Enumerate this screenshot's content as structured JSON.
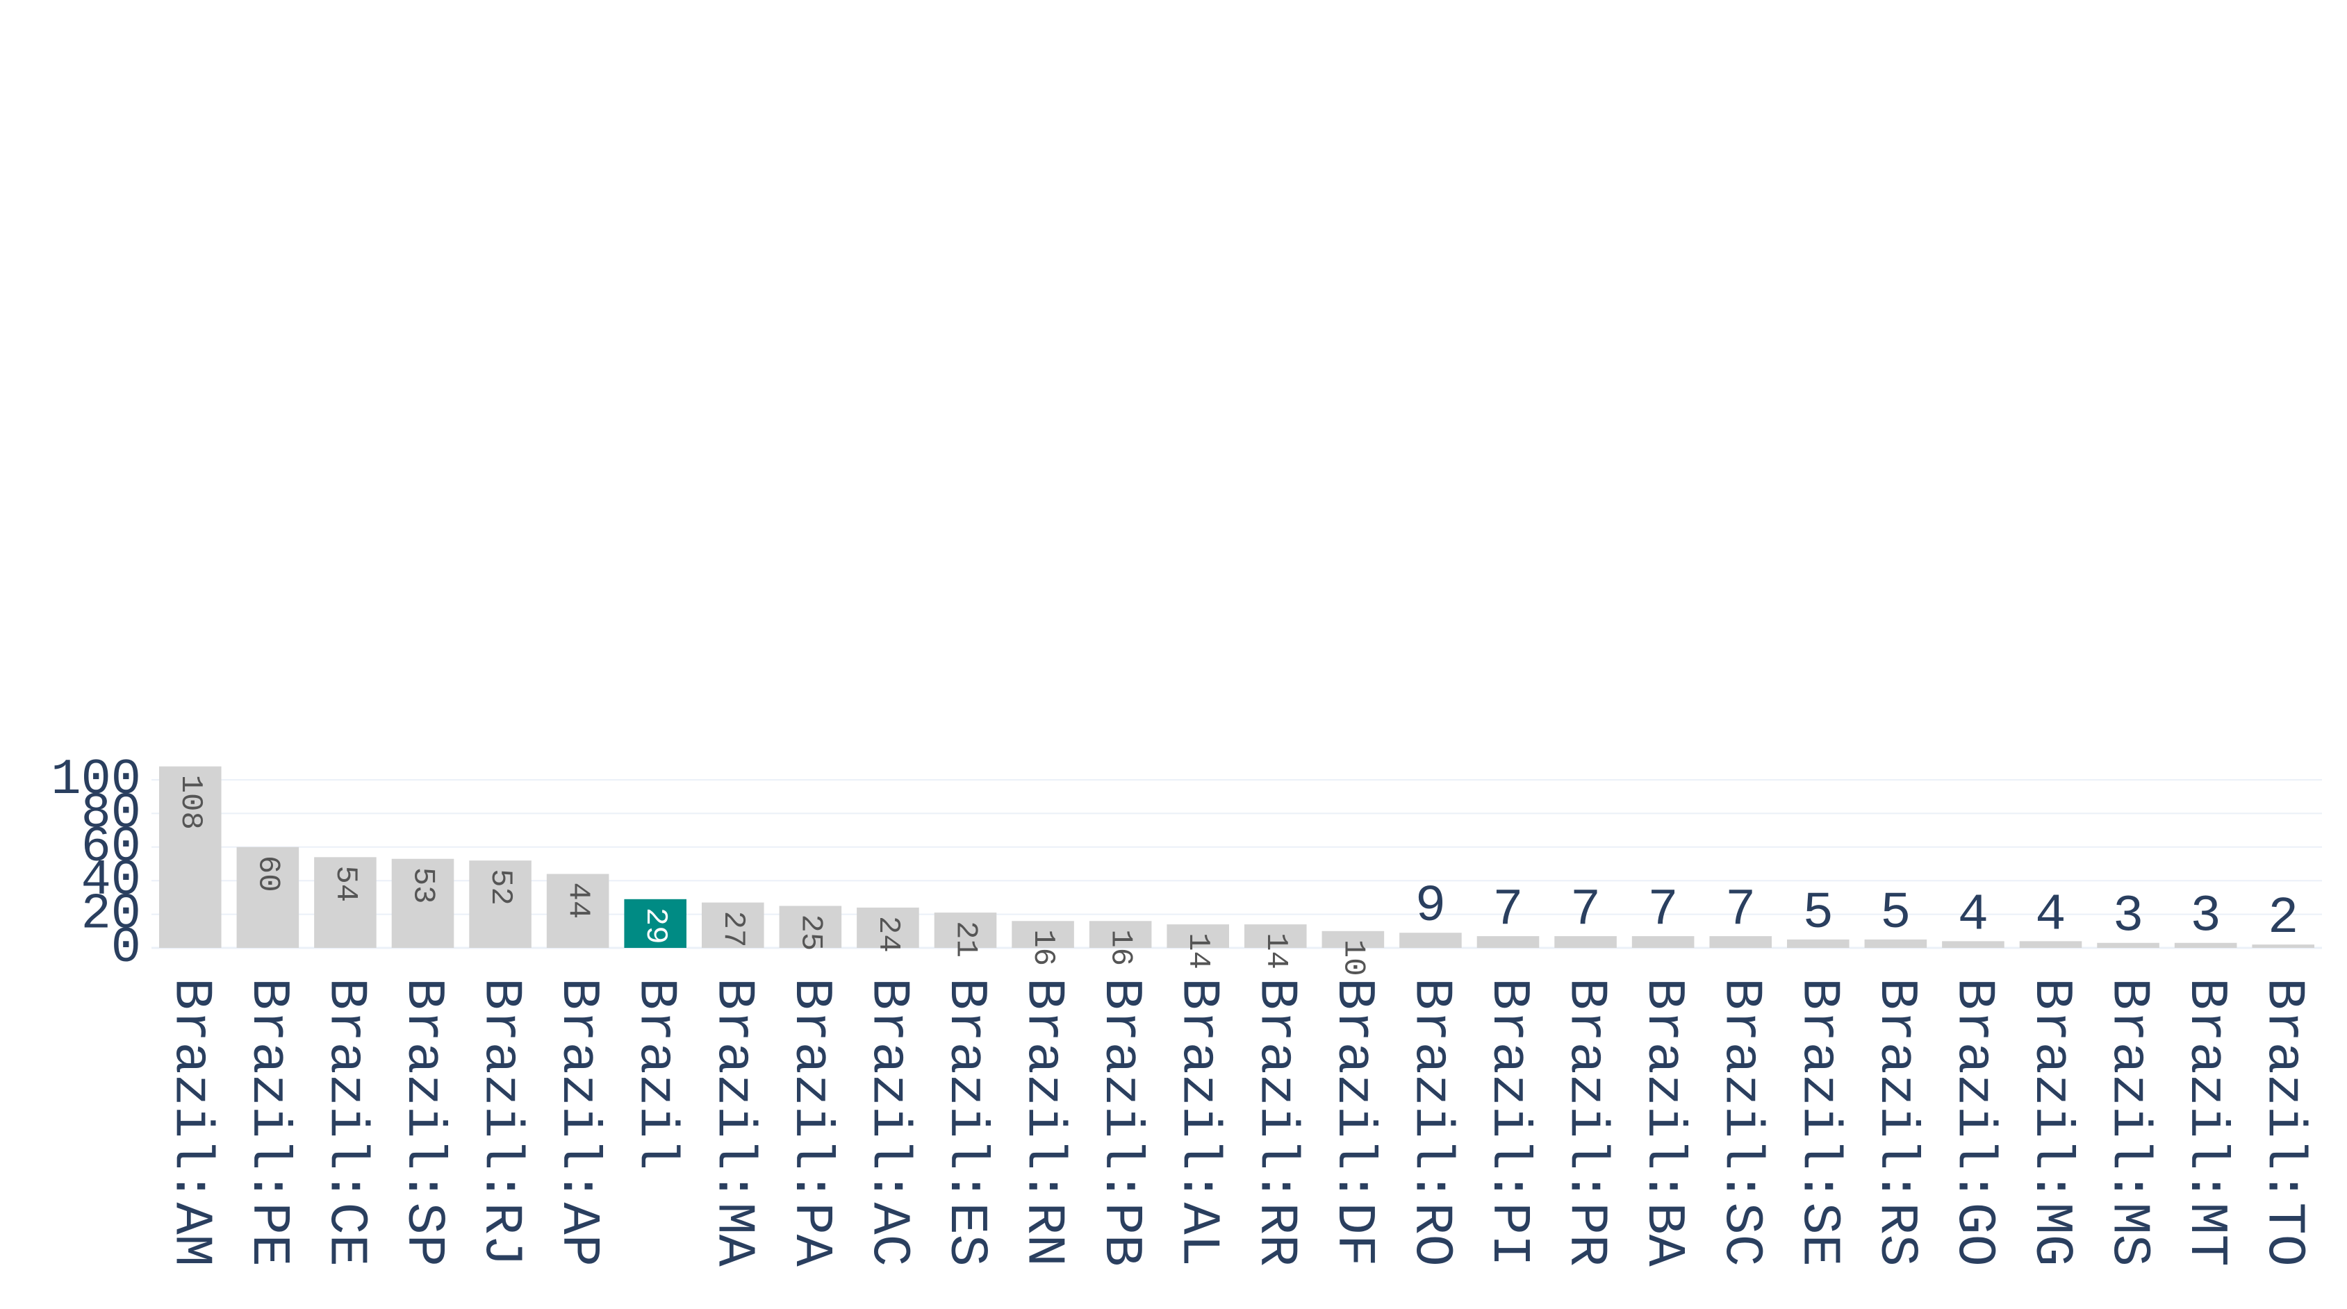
{
  "chart_data": {
    "type": "bar",
    "categories": [
      "Brazil:AM",
      "Brazil:PE",
      "Brazil:CE",
      "Brazil:SP",
      "Brazil:RJ",
      "Brazil:AP",
      "Brazil",
      "Brazil:MA",
      "Brazil:PA",
      "Brazil:AC",
      "Brazil:ES",
      "Brazil:RN",
      "Brazil:PB",
      "Brazil:AL",
      "Brazil:RR",
      "Brazil:DF",
      "Brazil:RO",
      "Brazil:PI",
      "Brazil:PR",
      "Brazil:BA",
      "Brazil:SC",
      "Brazil:SE",
      "Brazil:RS",
      "Brazil:GO",
      "Brazil:MG",
      "Brazil:MS",
      "Brazil:MT",
      "Brazil:TO"
    ],
    "values": [
      108,
      60,
      54,
      53,
      52,
      44,
      29,
      27,
      25,
      24,
      21,
      16,
      16,
      14,
      14,
      10,
      9,
      7,
      7,
      7,
      7,
      5,
      5,
      4,
      4,
      3,
      3,
      2
    ],
    "data_labels": [
      "108",
      "60",
      "54",
      "53",
      "52",
      "44",
      "29",
      "27",
      "25",
      "24",
      "21",
      "16",
      "16",
      "14",
      "14",
      "10",
      "9",
      "7",
      "7",
      "7",
      "7",
      "5",
      "5",
      "4",
      "4",
      "3",
      "3",
      "2"
    ],
    "highlight_category": "Brazil",
    "title": "",
    "xlabel": "",
    "ylabel": "",
    "ylim": [
      0,
      108
    ],
    "yticks": [
      0,
      20,
      40,
      60,
      80,
      100
    ],
    "ytick_labels": [
      "0",
      "20",
      "40",
      "60",
      "80",
      "100"
    ],
    "grid": "horizontal",
    "legend": "none",
    "colors": {
      "bar": "#d3d3d3",
      "highlight": "#008b84",
      "inside_label": "#555555",
      "highlight_label": "#ffffff",
      "outside_label": "#2a3f5f",
      "tick_label": "#2a3f5f",
      "grid": "#ebf0f8",
      "zero_line": "#ebf0f8"
    }
  }
}
